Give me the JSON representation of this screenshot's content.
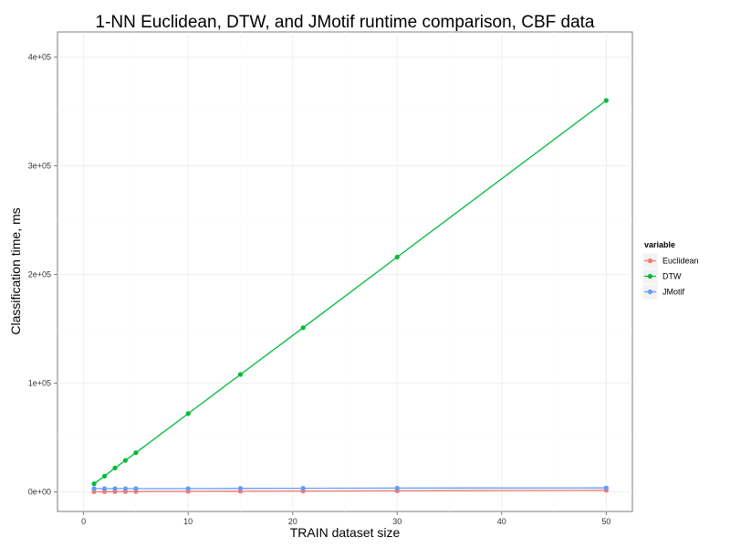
{
  "chart_data": {
    "type": "line",
    "title": "1-NN Euclidean, DTW, and JMotif runtime comparison, CBF data",
    "xlabel": "TRAIN dataset size",
    "ylabel": "Classification time, ms",
    "xlim": [
      -2.5,
      52.5
    ],
    "ylim": [
      -18000,
      423000
    ],
    "x_ticks": [
      0,
      10,
      20,
      30,
      40,
      50
    ],
    "x_tick_labels": [
      "0",
      "10",
      "20",
      "30",
      "40",
      "50"
    ],
    "y_ticks": [
      0,
      100000,
      200000,
      300000,
      400000
    ],
    "y_tick_labels": [
      "0e+00",
      "1e+05",
      "2e+05",
      "3e+05",
      "4e+05"
    ],
    "grid": true,
    "legend": {
      "title": "variable",
      "position": "right"
    },
    "series": [
      {
        "name": "Euclidean",
        "color": "#f8766d",
        "x": [
          1,
          2,
          3,
          4,
          5,
          10,
          15,
          21,
          30,
          50
        ],
        "y": [
          100,
          200,
          200,
          300,
          300,
          500,
          600,
          800,
          1000,
          1500
        ]
      },
      {
        "name": "DTW",
        "color": "#00ba38",
        "x": [
          1,
          2,
          3,
          4,
          5,
          10,
          15,
          21,
          30,
          50
        ],
        "y": [
          7500,
          14500,
          22000,
          29000,
          36000,
          72000,
          108000,
          151000,
          216000,
          360000
        ]
      },
      {
        "name": "JMotif",
        "color": "#619cff",
        "x": [
          1,
          2,
          3,
          4,
          5,
          10,
          15,
          21,
          30,
          50
        ],
        "y": [
          3000,
          3000,
          3000,
          3000,
          3000,
          3000,
          3200,
          3300,
          3500,
          3700
        ]
      }
    ]
  }
}
